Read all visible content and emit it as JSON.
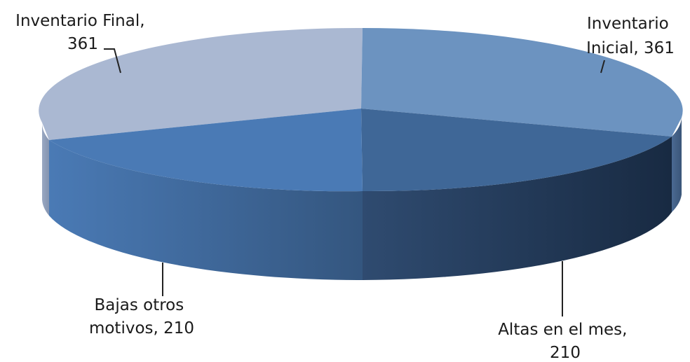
{
  "chart_data": {
    "type": "pie",
    "style": "3d",
    "title": "",
    "slices": [
      {
        "label": "Inventario Inicial",
        "value": 361,
        "color": "#6c93c0",
        "label_lines": [
          "Inventario",
          "Inicial, 361"
        ]
      },
      {
        "label": "Altas en el mes",
        "value": 210,
        "color": "#3f6797",
        "label_lines": [
          "Altas en el mes,",
          "210"
        ]
      },
      {
        "label": "Bajas otros motivos",
        "value": 210,
        "color": "#4a7ab5",
        "label_lines": [
          "Bajas otros",
          "motivos, 210"
        ]
      },
      {
        "label": "Inventario Final",
        "value": 361,
        "color": "#aab8d2",
        "label_lines": [
          "Inventario Final,",
          "361"
        ]
      }
    ]
  }
}
